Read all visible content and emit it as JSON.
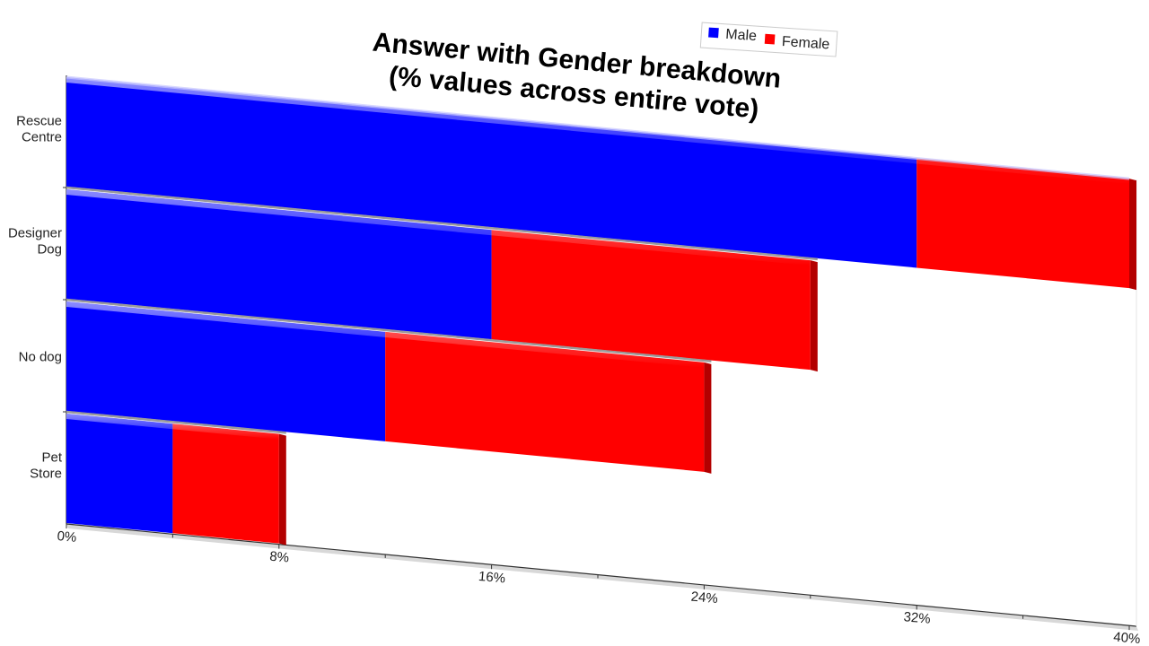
{
  "chart_data": {
    "type": "bar",
    "orientation": "horizontal",
    "stacked": true,
    "title_lines": [
      "Answer with Gender breakdown",
      "(% values across entire vote)"
    ],
    "xlabel": "",
    "ylabel": "",
    "categories": [
      "Rescue Centre",
      "Designer Dog",
      "No dog",
      "Pet Store"
    ],
    "category_label_lines": [
      [
        "Rescue",
        "Centre"
      ],
      [
        "Designer",
        "Dog"
      ],
      [
        "No dog"
      ],
      [
        "Pet",
        "Store"
      ]
    ],
    "series": [
      {
        "name": "Male",
        "color": "#0000ff",
        "values": [
          32,
          16,
          12,
          4
        ]
      },
      {
        "name": "Female",
        "color": "#ff0000",
        "values": [
          8,
          12,
          12,
          4
        ]
      }
    ],
    "xlim": [
      0,
      40
    ],
    "x_ticks": [
      "0%",
      "8%",
      "16%",
      "24%",
      "32%",
      "40%"
    ],
    "x_tick_values": [
      0,
      8,
      16,
      24,
      32,
      40
    ],
    "legend_position": "top",
    "grid": false
  }
}
